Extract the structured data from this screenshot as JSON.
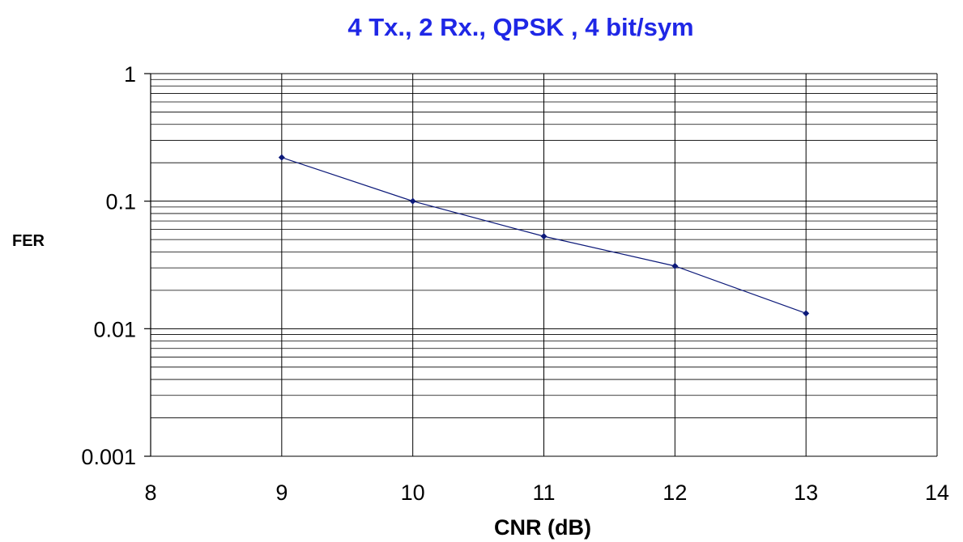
{
  "colors": {
    "title": "#1f27e6",
    "series": "#0d1a7a",
    "grid": "#000000",
    "background": "#ffffff"
  },
  "chart_data": {
    "type": "line",
    "title": "4 Tx., 2 Rx., QPSK , 4 bit/sym",
    "xlabel": "CNR (dB)",
    "ylabel": "FER",
    "xlim": [
      8,
      14
    ],
    "ylim": [
      0.001,
      1
    ],
    "yscale": "log",
    "grid": true,
    "legend": "none",
    "x_ticks": [
      "8",
      "9",
      "10",
      "11",
      "12",
      "13",
      "14"
    ],
    "y_ticks": [
      "1",
      "0.1",
      "0.01",
      "0.001"
    ],
    "series": [
      {
        "x": [
          9,
          10,
          11,
          12,
          13
        ],
        "y": [
          0.22,
          0.1,
          0.053,
          0.031,
          0.0132
        ]
      }
    ]
  }
}
